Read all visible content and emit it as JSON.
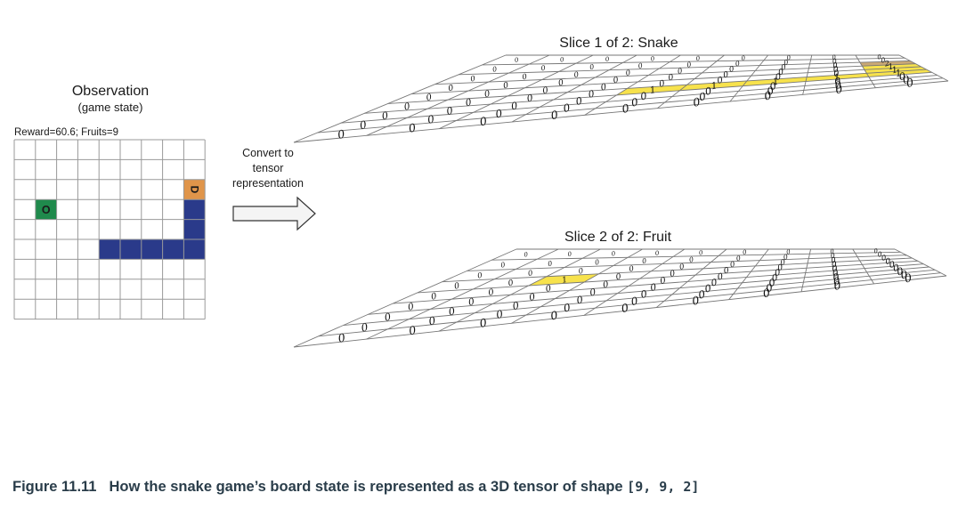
{
  "observation": {
    "title": "Observation",
    "subtitle": "(game state)",
    "status": "Reward=60.6; Fruits=9",
    "head_glyph": "D",
    "fruit_glyph": "O",
    "colors": {
      "snake": "#2a3a8a",
      "head": "#e0954a",
      "fruit": "#1f8a4c",
      "grid": "#999999"
    }
  },
  "conversion": {
    "label_line1": "Convert to",
    "label_line2": "tensor",
    "label_line3": "representation"
  },
  "slices": [
    {
      "title": "Slice 1 of 2: Snake",
      "zero": "0",
      "one": "1",
      "two": "2",
      "highlight": "#f7e24c",
      "head_color": "#c9a875"
    },
    {
      "title": "Slice 2 of 2: Fruit",
      "zero": "0",
      "one": "1",
      "highlight": "#f7e24c"
    }
  ],
  "caption": {
    "number": "Figure 11.11",
    "text": "How the snake game’s board state is represented as a 3D tensor of shape ",
    "shape": "[9, 9, 2]"
  }
}
